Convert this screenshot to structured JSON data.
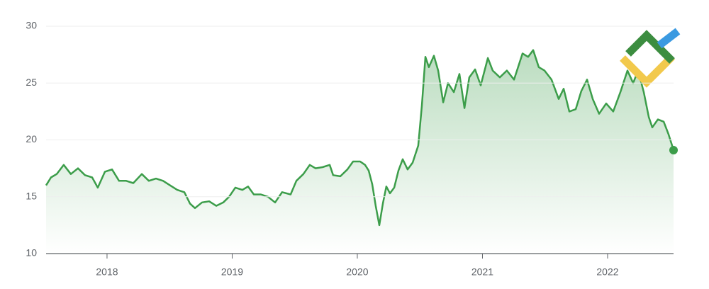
{
  "chart_data": {
    "type": "line",
    "x": [
      2017.513,
      2017.552,
      2017.598,
      2017.654,
      2017.711,
      2017.768,
      2017.824,
      2017.881,
      2017.926,
      2017.983,
      2018.04,
      2018.096,
      2018.153,
      2018.21,
      2018.278,
      2018.334,
      2018.391,
      2018.448,
      2018.504,
      2018.561,
      2018.618,
      2018.663,
      2018.703,
      2018.759,
      2018.816,
      2018.873,
      2018.929,
      2018.975,
      2019.025,
      2019.082,
      2019.127,
      2019.173,
      2019.229,
      2019.286,
      2019.343,
      2019.399,
      2019.467,
      2019.513,
      2019.569,
      2019.62,
      2019.666,
      2019.722,
      2019.779,
      2019.807,
      2019.864,
      2019.921,
      2019.966,
      2020.023,
      2020.062,
      2020.091,
      2020.119,
      2020.147,
      2020.176,
      2020.204,
      2020.232,
      2020.261,
      2020.295,
      2020.329,
      2020.363,
      2020.402,
      2020.442,
      2020.487,
      2020.516,
      2020.544,
      2020.572,
      2020.612,
      2020.646,
      2020.686,
      2020.725,
      2020.771,
      2020.816,
      2020.856,
      2020.895,
      2020.941,
      2020.986,
      2021.043,
      2021.082,
      2021.139,
      2021.195,
      2021.252,
      2021.32,
      2021.365,
      2021.405,
      2021.45,
      2021.496,
      2021.552,
      2021.609,
      2021.649,
      2021.694,
      2021.745,
      2021.79,
      2021.836,
      2021.881,
      2021.932,
      2021.989,
      2022.045,
      2022.102,
      2022.159,
      2022.204,
      2022.244,
      2022.289,
      2022.329,
      2022.357,
      2022.402,
      2022.448,
      2022.487,
      2022.527
    ],
    "series": [
      {
        "color": "#3c9d4a",
        "values": [
          16.0,
          16.7,
          17.0,
          17.8,
          17.0,
          17.5,
          16.9,
          16.7,
          15.8,
          17.2,
          17.4,
          16.4,
          16.4,
          16.2,
          17.0,
          16.4,
          16.6,
          16.4,
          16.0,
          15.6,
          15.4,
          14.4,
          14.0,
          14.5,
          14.6,
          14.2,
          14.5,
          15.0,
          15.8,
          15.6,
          15.9,
          15.2,
          15.2,
          15.0,
          14.5,
          15.4,
          15.2,
          16.4,
          17.0,
          17.8,
          17.5,
          17.6,
          17.8,
          16.9,
          16.8,
          17.4,
          18.1,
          18.1,
          17.8,
          17.3,
          16.1,
          14.2,
          12.5,
          14.4,
          15.9,
          15.3,
          15.8,
          17.3,
          18.3,
          17.4,
          18.0,
          19.5,
          23.0,
          27.3,
          26.4,
          27.4,
          26.1,
          23.3,
          25.0,
          24.2,
          25.8,
          22.8,
          25.5,
          26.2,
          24.8,
          27.2,
          26.1,
          25.5,
          26.1,
          25.3,
          27.6,
          27.3,
          27.9,
          26.4,
          26.1,
          25.3,
          23.6,
          24.5,
          22.5,
          22.7,
          24.3,
          25.3,
          23.6,
          22.3,
          23.2,
          22.5,
          24.2,
          26.1,
          25.0,
          26.1,
          24.2,
          22.0,
          21.1,
          21.8,
          21.6,
          20.5,
          19.1
        ]
      }
    ],
    "xlim": [
      2017.513,
      2022.527
    ],
    "xticks": [
      2018,
      2019,
      2020,
      2021,
      2022
    ],
    "ylim": [
      10,
      30
    ],
    "yticks": [
      10,
      15,
      20,
      25,
      30
    ],
    "grid": true
  }
}
